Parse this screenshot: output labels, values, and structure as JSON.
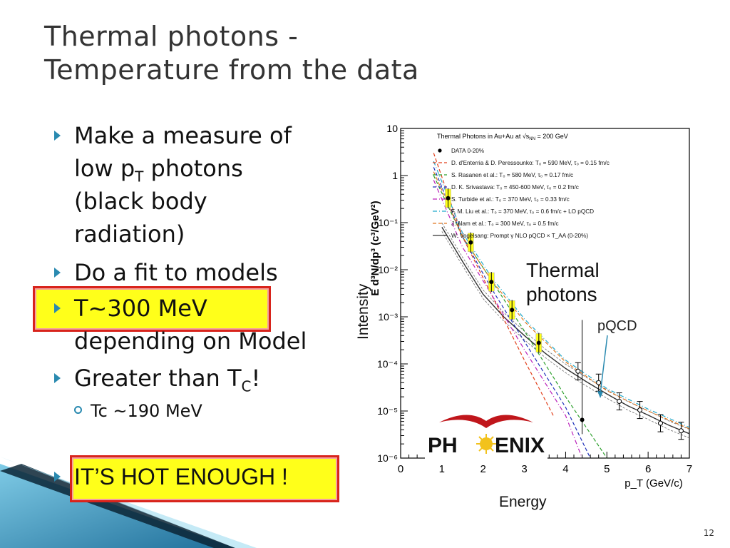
{
  "slide": {
    "title_line1": "Thermal photons -",
    "title_line2": "Temperature from the data",
    "slide_number": "12"
  },
  "bullets": {
    "b1_line1": "Make a measure of",
    "b1_line2_pre": "low p",
    "b1_line2_sub": "T",
    "b1_line2_post": " photons",
    "b1_line3": "(black body",
    "b1_line4": "radiation)",
    "b2": "Do a fit to models",
    "b3_line1": "T~300 MeV",
    "b3_line2": "depending on Model",
    "b4_pre": "Greater than T",
    "b4_sub": "C",
    "b4_post": "!",
    "sub1": "Tc ~190 MeV",
    "b5": "IT’S HOT ENOUGH !"
  },
  "figure": {
    "legend_title": "Thermal Photons in Au+Au at √s",
    "legend_title_sub": "NN",
    "legend_title_post": " = 200 GeV",
    "legend": [
      {
        "label": "DATA 0-20%",
        "color": "#000000",
        "style": "dot"
      },
      {
        "label": "D. d'Enterria & D. Peressounko: T₀ = 590 MeV, τ₀ = 0.15 fm/c",
        "color": "#e2401c",
        "style": "dash"
      },
      {
        "label": "S. Rasanen et al.: T₀ = 580 MeV, τ₀ = 0.17 fm/c",
        "color": "#2ea02e",
        "style": "dash"
      },
      {
        "label": "D. K. Srivastava: T₀ = 450-600 MeV, τ₀ = 0.2 fm/c",
        "color": "#2233bb",
        "style": "dash"
      },
      {
        "label": "S. Turbide et al.: T₀ = 370 MeV, τ₀ = 0.33 fm/c",
        "color": "#bb22bb",
        "style": "dashdot"
      },
      {
        "label": "F. M. Liu et al.: T₀ = 370 MeV, τ₀ = 0.6 fm/c + LO pQCD",
        "color": "#22aacc",
        "style": "dashdot"
      },
      {
        "label": "J. Alam et al.: T₀ = 300 MeV, τ₀ = 0.5 fm/c",
        "color": "#e07820",
        "style": "dash"
      },
      {
        "label": "W. Vogelsang: Prompt γ NLO pQCD × T_AA (0-20%)",
        "color": "#333333",
        "style": "solid"
      }
    ],
    "x_tick_labels": [
      "0",
      "1",
      "2",
      "3",
      "4",
      "5",
      "6",
      "7"
    ],
    "y_tick_labels": [
      "10⁻⁶",
      "10⁻⁵",
      "10⁻⁴",
      "10⁻³",
      "10⁻²",
      "10⁻¹",
      "1",
      "10"
    ],
    "xlabel": "p_T (GeV/c)",
    "ylabel": "E d³N/dp³ (c³/GeV²)",
    "annotation_thermal_line1": "Thermal",
    "annotation_thermal_line2": "photons",
    "annotation_pqcd": "pQCD",
    "annotation_intensity": "Intensity",
    "annotation_energy": "Energy",
    "logo_text_left": "PH",
    "logo_text_right": "ENIX"
  },
  "chart_data": {
    "type": "scatter",
    "title": "Thermal Photons in Au+Au at √sNN = 200 GeV",
    "xlabel": "p_T (GeV/c)",
    "ylabel": "E d³N/dp³ (c³/GeV²)",
    "xlim": [
      0,
      7
    ],
    "ylim": [
      1e-06,
      10
    ],
    "y_scale": "log",
    "legend_position": "top-right",
    "series": [
      {
        "name": "DATA 0-20%",
        "points": [
          {
            "x": 1.15,
            "y": 0.33
          },
          {
            "x": 1.7,
            "y": 0.038
          },
          {
            "x": 2.2,
            "y": 0.0055
          },
          {
            "x": 2.7,
            "y": 0.0014
          },
          {
            "x": 3.35,
            "y": 0.00028
          },
          {
            "x": 4.4,
            "y": 6.5e-06
          }
        ]
      },
      {
        "name": "DATA 0-20% (open)",
        "points": [
          {
            "x": 4.3,
            "y": 7e-05
          },
          {
            "x": 4.8,
            "y": 4e-05
          },
          {
            "x": 5.3,
            "y": 1.6e-05
          },
          {
            "x": 5.8,
            "y": 1.05e-05
          },
          {
            "x": 6.3,
            "y": 5.5e-06
          },
          {
            "x": 6.8,
            "y": 3.8e-06
          }
        ]
      },
      {
        "name": "W. Vogelsang: Prompt γ NLO pQCD × T_AA (0-20%)",
        "x": [
          1.0,
          1.5,
          2.0,
          2.5,
          3.0,
          3.5,
          4.0,
          4.5,
          5.0,
          5.5,
          6.0,
          6.5,
          7.0
        ],
        "y": [
          0.08,
          0.015,
          0.003,
          0.001,
          0.0004,
          0.00017,
          8e-05,
          4.2e-05,
          2.3e-05,
          1.3e-05,
          8.2e-06,
          5e-06,
          3.3e-06
        ]
      },
      {
        "name": "D. d'Enterria & D. Peressounko",
        "x": [
          0.8,
          1.5,
          2.2,
          3.0,
          3.7
        ],
        "y": [
          3.0,
          0.05,
          0.003,
          0.00012,
          8e-06
        ]
      },
      {
        "name": "S. Rasanen et al.",
        "x": [
          0.8,
          1.5,
          2.2,
          3.0,
          4.0,
          5.0
        ],
        "y": [
          1.0,
          0.05,
          0.006,
          0.0005,
          2e-05,
          1e-06
        ]
      },
      {
        "name": "D. K. Srivastava",
        "x": [
          0.8,
          1.5,
          2.2,
          3.0,
          4.0,
          4.6
        ],
        "y": [
          1.5,
          0.05,
          0.004,
          0.0003,
          1.2e-05,
          1e-06
        ]
      },
      {
        "name": "S. Turbide et al.",
        "x": [
          0.8,
          1.5,
          2.2,
          3.0,
          4.0,
          4.4
        ],
        "y": [
          0.8,
          0.03,
          0.003,
          0.0002,
          8e-06,
          1e-06
        ]
      },
      {
        "name": "F. M. Liu et al. + LO pQCD",
        "x": [
          0.8,
          1.5,
          2.2,
          3.0,
          4.0,
          5.0,
          6.0,
          7.0
        ],
        "y": [
          2.0,
          0.06,
          0.007,
          0.0009,
          0.00012,
          3e-05,
          1.1e-05,
          4.5e-06
        ]
      },
      {
        "name": "J. Alam et al.",
        "x": [
          0.8,
          1.5,
          2.2,
          3.0,
          4.0,
          5.0,
          6.0,
          7.0
        ],
        "y": [
          1.2,
          0.05,
          0.006,
          0.0008,
          0.00011,
          2.7e-05,
          1e-05,
          4.2e-06
        ]
      }
    ]
  },
  "colors": {
    "accent": "#2a8ab0",
    "highlight_fill": "#ffff1a",
    "highlight_border": "#d8241c",
    "title": "#333333"
  }
}
